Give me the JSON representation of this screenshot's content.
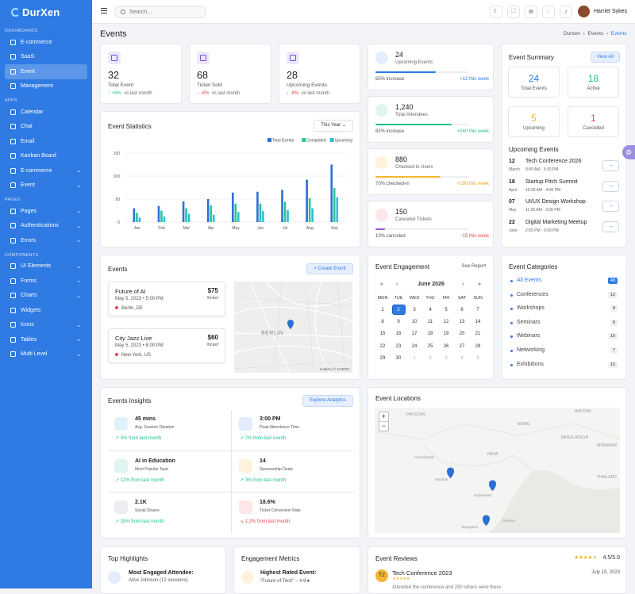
{
  "sidebar": {
    "brand": "DurXen",
    "sections": [
      {
        "title": "DASHBOARDS",
        "items": [
          {
            "label": "E-commerce"
          },
          {
            "label": "SaaS"
          },
          {
            "label": "Event",
            "active": true
          },
          {
            "label": "Management"
          }
        ]
      },
      {
        "title": "APPS",
        "items": [
          {
            "label": "Calendar"
          },
          {
            "label": "Chat"
          },
          {
            "label": "Email"
          },
          {
            "label": "Kanban Board"
          },
          {
            "label": "E-commerce",
            "expand": true
          },
          {
            "label": "Event",
            "expand": true
          }
        ]
      },
      {
        "title": "PAGES",
        "items": [
          {
            "label": "Pages",
            "expand": true
          },
          {
            "label": "Authentications",
            "expand": true
          },
          {
            "label": "Errors",
            "expand": true
          }
        ]
      },
      {
        "title": "COMPONENTS",
        "items": [
          {
            "label": "UI Elements",
            "expand": true
          },
          {
            "label": "Forms",
            "expand": true
          },
          {
            "label": "Charts",
            "expand": true
          },
          {
            "label": "Widgets"
          },
          {
            "label": "Icons",
            "expand": true
          },
          {
            "label": "Tables",
            "expand": true
          },
          {
            "label": "Multi Level",
            "expand": true
          }
        ]
      }
    ]
  },
  "topbar": {
    "search_placeholder": "Search...",
    "user": "Harriet Sykes"
  },
  "page": {
    "title": "Events",
    "breadcrumb": [
      "Durxen",
      "Events",
      "Events"
    ]
  },
  "stats": [
    {
      "value": "32",
      "label": "Total Event",
      "change": "+8%",
      "dir": "up",
      "suffix": "vs last month"
    },
    {
      "value": "68",
      "label": "Ticket Sold",
      "change": "-8%",
      "dir": "down",
      "suffix": "vs last month"
    },
    {
      "value": "28",
      "label": "Upcoming Events",
      "change": "-8%",
      "dir": "down",
      "suffix": "vs last month"
    }
  ],
  "side_stats": [
    {
      "value": "24",
      "label": "Upcoming Events",
      "foot": "65% increase",
      "change": "+12 this week",
      "progress": 0.65,
      "color": "#2f7ae3",
      "change_color": "#2f7ae3",
      "icon_bg": "#e4eefc"
    },
    {
      "value": "1,240",
      "label": "Total Attendees",
      "foot": "82% increase",
      "change": "+240 this week",
      "progress": 0.82,
      "color": "#1bbf8f",
      "change_color": "#1bbf8f",
      "icon_bg": "#e1f6ee"
    },
    {
      "value": "880",
      "label": "Checked-in Users",
      "foot": "70% checked-in",
      "change": "+100 this week",
      "progress": 0.7,
      "color": "#f3b532",
      "change_color": "#e9a40f",
      "icon_bg": "#fdf3dc"
    },
    {
      "value": "150",
      "label": "Canceled Tickets",
      "foot": "10% canceled",
      "change": "-15 this week",
      "progress": 0.1,
      "color": "#9b59d0",
      "change_color": "#e5474f",
      "icon_bg": "#fde7e8"
    }
  ],
  "event_summary": {
    "title": "Event Summary",
    "view_all": "View All",
    "boxes": [
      {
        "value": "24",
        "label": "Total Events",
        "color": "#2f7ae3"
      },
      {
        "value": "18",
        "label": "Active",
        "color": "#1bbf8f"
      },
      {
        "value": "5",
        "label": "Upcoming",
        "color": "#f3b532"
      },
      {
        "value": "1",
        "label": "Cancelled",
        "color": "#e5474f"
      }
    ],
    "upcoming_title": "Upcoming Events",
    "upcoming": [
      {
        "day": "12",
        "month": "March",
        "title": "Tech Conference 2026",
        "time": "9:00 AM - 5:00 PM"
      },
      {
        "day": "18",
        "month": "April",
        "title": "Startup Pitch Summit",
        "time": "10:00 AM - 4:00 PM"
      },
      {
        "day": "07",
        "month": "May",
        "title": "UI/UX Design Workshop",
        "time": "11:00 AM - 3:00 PM"
      },
      {
        "day": "22",
        "month": "June",
        "title": "Digital Marketing Meetup",
        "time": "2:00 PM - 6:00 PM"
      }
    ]
  },
  "chart_data": {
    "type": "bar",
    "title": "Event Statistics",
    "filter": "This Year",
    "categories": [
      "Jan",
      "Feb",
      "Mar",
      "Apr",
      "May",
      "Jun",
      "Jul",
      "Aug",
      "Sep"
    ],
    "series": [
      {
        "name": "Total Events",
        "color": "#2f6fd6",
        "values": [
          30,
          35,
          45,
          50,
          64,
          66,
          70,
          92,
          125
        ]
      },
      {
        "name": "Completed",
        "color": "#26c59a",
        "values": [
          20,
          25,
          30,
          36,
          40,
          40,
          44,
          52,
          74
        ]
      },
      {
        "name": "Upcoming",
        "color": "#2bbfd8",
        "values": [
          10,
          12,
          18,
          16,
          22,
          24,
          26,
          30,
          54
        ]
      }
    ],
    "ylim": [
      0,
      150
    ],
    "yticks": [
      0,
      50,
      100,
      150
    ]
  },
  "events": {
    "title": "Events",
    "create": "+ Create Event",
    "items": [
      {
        "title": "Future of AI",
        "date": "May 5, 2023 • 5:00 PM",
        "location": "Berlin, DE",
        "price": "$75",
        "unit": "/ticket"
      },
      {
        "title": "City Jazz Live",
        "date": "May 5, 2023 • 8:00 PM",
        "location": "New York, US",
        "price": "$60",
        "unit": "/ticket"
      }
    ],
    "map_label": "BERLIN",
    "attribution": "Leaflet | © CARTO"
  },
  "engagement": {
    "title": "Event Engagement",
    "report": "See Report",
    "month": "June 2026",
    "nav": [
      "«",
      "‹",
      "›",
      "»"
    ],
    "weekdays": [
      "MON",
      "TUE",
      "WED",
      "THU",
      "FRI",
      "SAT",
      "SUN"
    ],
    "weeks": [
      [
        "1",
        "2",
        "3",
        "4",
        "5",
        "6",
        "7"
      ],
      [
        "8",
        "9",
        "10",
        "11",
        "12",
        "13",
        "14"
      ],
      [
        "15",
        "16",
        "17",
        "18",
        "19",
        "20",
        "21"
      ],
      [
        "22",
        "23",
        "24",
        "25",
        "26",
        "27",
        "28"
      ],
      [
        "29",
        "30",
        "1",
        "2",
        "3",
        "4",
        "5"
      ]
    ],
    "selected": "2"
  },
  "categories": {
    "title": "Event Categories",
    "items": [
      {
        "name": "All Events",
        "count": "48"
      },
      {
        "name": "Conferences",
        "count": "12"
      },
      {
        "name": "Workshops",
        "count": "8"
      },
      {
        "name": "Seminars",
        "count": "6"
      },
      {
        "name": "Webinars",
        "count": "10"
      },
      {
        "name": "Networking",
        "count": "7"
      },
      {
        "name": "Exhibitions",
        "count": "10"
      }
    ]
  },
  "insights": {
    "title": "Events Insights",
    "button": "Explore Analytics",
    "items": [
      {
        "value": "45 mins",
        "label": "Avg. Session Duration",
        "change": "5% from last month",
        "neg": false,
        "bg": "#e2f2fb",
        "icon": "clock-icon"
      },
      {
        "value": "3:00 PM",
        "label": "Peak Attendance Time",
        "change": "7% from last month",
        "neg": false,
        "bg": "#e4ecfb",
        "icon": "trend-icon"
      },
      {
        "value": "AI in Education",
        "label": "Most Popular Topic",
        "change": "12% from last month",
        "neg": false,
        "bg": "#e0f5f1",
        "icon": "bulb-icon"
      },
      {
        "value": "14",
        "label": "Sponsorship Deals",
        "change": "3% from last month",
        "neg": false,
        "bg": "#fdf3dc",
        "icon": "briefcase-icon"
      },
      {
        "value": "2.1K",
        "label": "Social Shares",
        "change": "25% from last month",
        "neg": false,
        "bg": "#eceef1",
        "icon": "share-icon"
      },
      {
        "value": "18.6%",
        "label": "Ticket Conversion Rate",
        "change": "1.2% from last month",
        "neg": true,
        "bg": "#fde7e8",
        "icon": "bar-chart-icon"
      }
    ]
  },
  "locations": {
    "title": "Event Locations",
    "labels": [
      "PAKISTAN",
      "NEPAL",
      "BHUTAN",
      "BANGLADESH",
      "MYANMAR",
      "INDIA",
      "THAILAND",
      "Ahmedabad",
      "Mumbai",
      "Hyderabad",
      "Bengaluru",
      "Chennai"
    ],
    "zoom_in": "+",
    "zoom_out": "−"
  },
  "highlights": {
    "title": "Top Highlights",
    "item_title": "Most Engaged Attendee:",
    "item_sub": "Alice Johnson (12 sessions)"
  },
  "metrics": {
    "title": "Engagement Metrics",
    "item_title": "Highest Rated Event:",
    "item_sub": "\"Future of Tech\" – 4.9★"
  },
  "reviews": {
    "title": "Event Reviews",
    "rating": "4.5/5.0",
    "stars": 4.5,
    "badge": "T2",
    "item_title": "Tech Conference 2023",
    "item_date": "July 15, 2023",
    "item_text": "Attended the conference and 250 others were there"
  }
}
